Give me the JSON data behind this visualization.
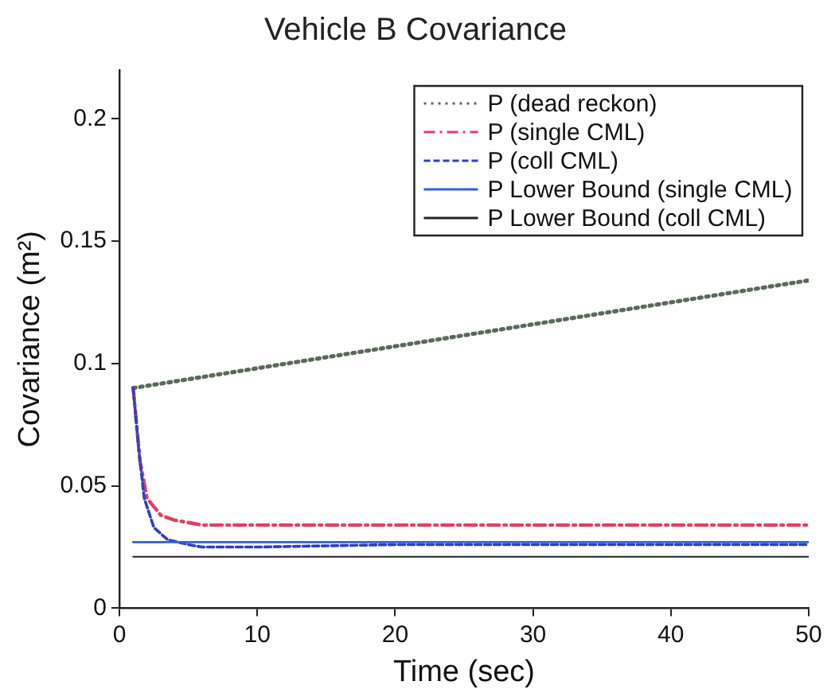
{
  "chart_data": {
    "type": "line",
    "title": "Vehicle B Covariance",
    "xlabel": "Time (sec)",
    "ylabel": "Covariance (m²)",
    "xlim": [
      0,
      50
    ],
    "xticks": [
      0,
      10,
      20,
      30,
      40,
      50
    ],
    "ylim": [
      0,
      0.22
    ],
    "yticks": [
      0,
      0.05,
      0.1,
      0.15,
      0.2
    ],
    "grid": false,
    "legend": "top right",
    "marker": "none",
    "series": [
      {
        "name": "P (dead reckon)",
        "color": "#5a6a5a",
        "line_style": "dotted",
        "x": [
          1,
          50
        ],
        "values": [
          0.09,
          0.134
        ]
      },
      {
        "name": "P (single CML)",
        "color": "#e04060",
        "line_style": "dashdot",
        "x": [
          1,
          1.5,
          2,
          3,
          4,
          5,
          6,
          10,
          20,
          30,
          40,
          50
        ],
        "values": [
          0.09,
          0.06,
          0.045,
          0.038,
          0.036,
          0.035,
          0.034,
          0.034,
          0.034,
          0.034,
          0.034,
          0.034
        ]
      },
      {
        "name": "P (coll CML)",
        "color": "#3040c0",
        "line_style": "dashed",
        "x": [
          1,
          1.4,
          1.8,
          2.5,
          3.5,
          5,
          6,
          10,
          20,
          30,
          40,
          50
        ],
        "values": [
          0.09,
          0.065,
          0.045,
          0.033,
          0.028,
          0.026,
          0.025,
          0.025,
          0.026,
          0.026,
          0.026,
          0.026
        ]
      },
      {
        "name": "P Lower Bound (single CML)",
        "color": "#3060e0",
        "line_style": "solid",
        "x": [
          1,
          50
        ],
        "values": [
          0.027,
          0.027
        ]
      },
      {
        "name": "P Lower Bound (coll CML)",
        "color": "#222222",
        "line_style": "solid",
        "x": [
          1,
          50
        ],
        "values": [
          0.021,
          0.021
        ]
      }
    ]
  }
}
